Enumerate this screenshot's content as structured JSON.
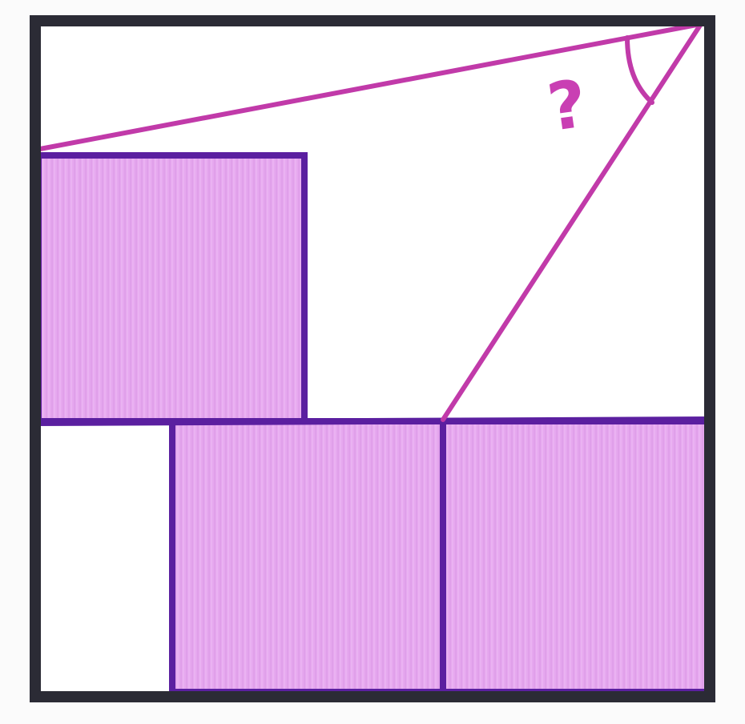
{
  "diagram": {
    "question_label": "?",
    "colors": {
      "background": "#fbfbfb",
      "paper": "#ffffff",
      "outer_border": "#2b2b35",
      "square_fill": "#e6a8ef",
      "square_stroke": "#5b1fa0",
      "angle_line": "#c13aa9",
      "question_mark": "#c93fb3"
    }
  }
}
